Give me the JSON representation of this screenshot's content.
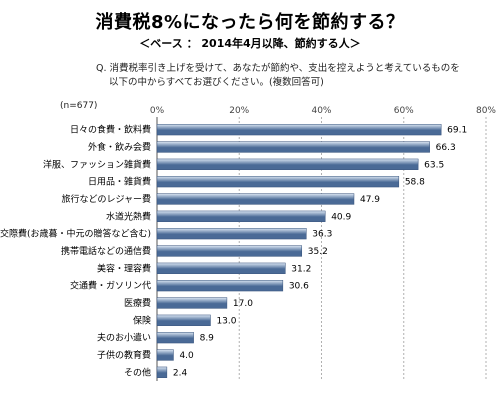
{
  "header": {
    "title": "消費税8%になったら何を節約する？",
    "subtitle": "＜ベース ： 2014年4月以降、節約する人＞",
    "question_line1": "Q. 消費税率引き上げを受けて、あなたが節約や、支出を控えようと考えているものを",
    "question_line2": "以下の中からすべてお選びください。(複数回答可)",
    "sample_note": "(n=677)"
  },
  "colors": {
    "bar_light": "#dbe6f3",
    "bar_dark": "#4a6a96",
    "grid": "#b0b0b0"
  },
  "chart_data": {
    "type": "bar",
    "orientation": "horizontal",
    "title": "消費税8%になったら何を節約する？",
    "categories": [
      "日々の食費・飲料費",
      "外食・飲み会費",
      "洋服、ファッション雑貨費",
      "日用品・雑貨費",
      "旅行などのレジャー費",
      "水道光熱費",
      "交際費(お歳暮・中元の贈答など含む)",
      "携帯電話などの通信費",
      "美容・理容費",
      "交通費・ガソリン代",
      "医療費",
      "保険",
      "夫のお小遣い",
      "子供の教育費",
      "その他"
    ],
    "values": [
      69.1,
      66.3,
      63.5,
      58.8,
      47.9,
      40.9,
      36.3,
      35.2,
      31.2,
      30.6,
      17.0,
      13.0,
      8.9,
      4.0,
      2.4
    ],
    "value_labels": [
      "69.1",
      "66.3",
      "63.5",
      "58.8",
      "47.9",
      "40.9",
      "36.3",
      "35.2",
      "31.2",
      "30.6",
      "17.0",
      "13.0",
      "8.9",
      "4.0",
      "2.4"
    ],
    "xlim": [
      0,
      80
    ],
    "xticks": [
      "0%",
      "20%",
      "40%",
      "60%",
      "80%"
    ],
    "xtick_values": [
      0,
      20,
      40,
      60,
      80
    ],
    "grid": true,
    "legend": "none"
  }
}
